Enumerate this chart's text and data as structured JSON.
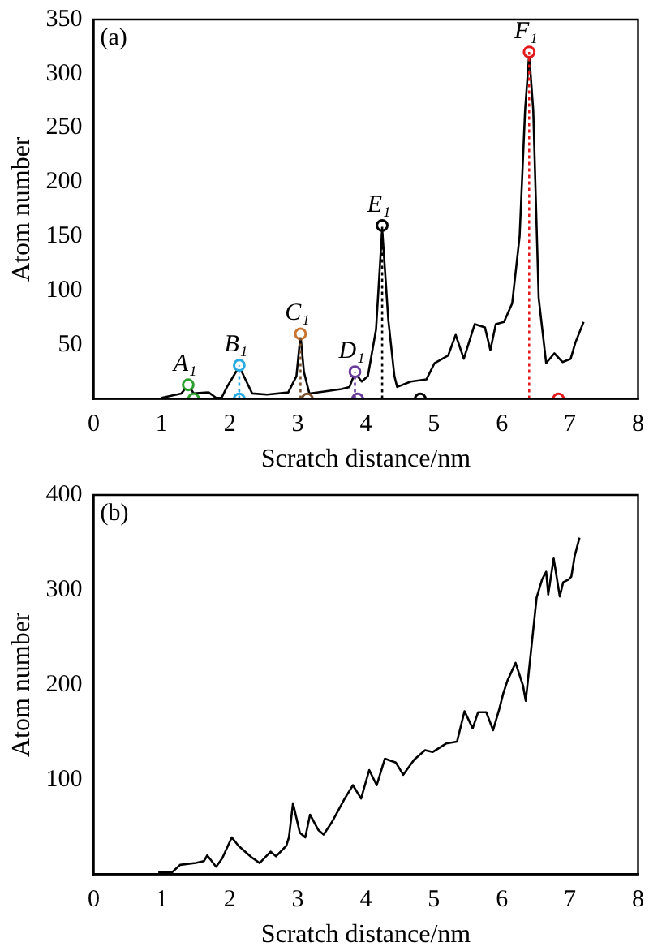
{
  "chart_data": [
    {
      "type": "line",
      "xlabel": "Scratch distance/nm",
      "ylabel": "Atom number",
      "xlim": [
        0,
        8
      ],
      "ylim": [
        0,
        350
      ],
      "xticks": [
        0,
        1,
        2,
        3,
        4,
        5,
        6,
        7,
        8
      ],
      "yticks": [
        50,
        100,
        150,
        200,
        250,
        300,
        350
      ],
      "grid": false,
      "legend": false,
      "annotations": [
        "(a)",
        {
          "text": "A₁",
          "x": 1.39,
          "y": 13
        },
        {
          "text": "B₁",
          "x": 2.14,
          "y": 31
        },
        {
          "text": "C₁",
          "x": 3.04,
          "y": 60
        },
        {
          "text": "D₁",
          "x": 3.84,
          "y": 25
        },
        {
          "text": "E₁",
          "x": 4.24,
          "y": 160
        },
        {
          "text": "F₁",
          "x": 6.4,
          "y": 320
        }
      ],
      "series": [
        {
          "type": "line",
          "color": "#000000",
          "marker": "none",
          "line_style": "solid",
          "x": [
            1.0,
            1.29,
            1.39,
            1.47,
            1.69,
            1.8,
            1.88,
            1.96,
            2.14,
            2.23,
            2.33,
            2.55,
            2.86,
            2.98,
            3.04,
            3.09,
            3.17,
            3.41,
            3.64,
            3.76,
            3.84,
            3.94,
            4.03,
            4.15,
            4.24,
            4.33,
            4.42,
            4.46,
            4.66,
            4.89,
            5.01,
            5.21,
            5.32,
            5.44,
            5.6,
            5.75,
            5.83,
            5.91,
            6.03,
            6.15,
            6.26,
            6.34,
            6.4,
            6.46,
            6.54,
            6.65,
            6.77,
            6.89,
            7.01,
            7.08,
            7.2
          ],
          "values": [
            1,
            5,
            13,
            5,
            6,
            1,
            1,
            11,
            30,
            18,
            5,
            4,
            6,
            21,
            59,
            25,
            5,
            7,
            9,
            11,
            24,
            16,
            21,
            64,
            157,
            73,
            21,
            11,
            16,
            18,
            33,
            40,
            59,
            37,
            69,
            66,
            45,
            69,
            71,
            88,
            150,
            266,
            318,
            266,
            93,
            33,
            42,
            34,
            37,
            52,
            71
          ]
        },
        {
          "type": "line",
          "color": "#29abe2",
          "marker": "none",
          "line_style": "dotted",
          "x": [
            2.14,
            2.14
          ],
          "values": [
            0,
            31
          ]
        },
        {
          "type": "line",
          "color": "#7a5230",
          "marker": "none",
          "line_style": "dotted",
          "x": [
            3.04,
            3.04
          ],
          "values": [
            0,
            60
          ]
        },
        {
          "type": "line",
          "color": "#6a3d9a",
          "marker": "none",
          "line_style": "dotted",
          "x": [
            3.84,
            3.84
          ],
          "values": [
            0,
            25
          ]
        },
        {
          "type": "line",
          "color": "#000000",
          "marker": "none",
          "line_style": "dotted",
          "x": [
            4.24,
            4.24
          ],
          "values": [
            0,
            160
          ]
        },
        {
          "type": "line",
          "color": "#e31a1c",
          "marker": "none",
          "line_style": "dotted",
          "x": [
            6.4,
            6.4
          ],
          "values": [
            0,
            320
          ]
        },
        {
          "type": "scatter",
          "marker": "circle",
          "x": [
            1.39,
            2.14,
            3.04,
            3.84,
            4.24,
            6.4
          ],
          "values": [
            13,
            31,
            60,
            25,
            160,
            320
          ],
          "colors": [
            "#2ca02c",
            "#29abe2",
            "#c87533",
            "#6a3d9a",
            "#000000",
            "#e31a1c"
          ]
        },
        {
          "type": "scatter",
          "marker": "circle",
          "x": [
            1.47,
            2.14,
            3.14,
            3.88,
            4.8,
            6.83
          ],
          "values": [
            0,
            0,
            0,
            0,
            0,
            0
          ],
          "colors": [
            "#2ca02c",
            "#29abe2",
            "#7a5230",
            "#6a3d9a",
            "#000000",
            "#e31a1c"
          ]
        }
      ]
    },
    {
      "type": "line",
      "xlabel": "Scratch distance/nm",
      "ylabel": "Atom number",
      "xlim": [
        0,
        8
      ],
      "ylim": [
        0,
        400
      ],
      "xticks": [
        0,
        1,
        2,
        3,
        4,
        5,
        6,
        7,
        8
      ],
      "yticks": [
        100,
        200,
        300,
        400
      ],
      "grid": false,
      "legend": false,
      "annotations": [
        "(b)"
      ],
      "series": [
        {
          "type": "line",
          "color": "#000000",
          "marker": "none",
          "line_style": "solid",
          "x": [
            0.95,
            1.15,
            1.27,
            1.5,
            1.62,
            1.67,
            1.8,
            1.89,
            2.03,
            2.13,
            2.32,
            2.44,
            2.6,
            2.68,
            2.83,
            2.87,
            2.93,
            3.03,
            3.11,
            3.18,
            3.3,
            3.38,
            3.5,
            3.69,
            3.81,
            3.93,
            4.05,
            4.16,
            4.28,
            4.44,
            4.55,
            4.71,
            4.87,
            4.98,
            5.18,
            5.34,
            5.45,
            5.57,
            5.65,
            5.77,
            5.87,
            5.96,
            6.02,
            6.08,
            6.2,
            6.31,
            6.35,
            6.51,
            6.59,
            6.65,
            6.68,
            6.76,
            6.85,
            6.9,
            6.98,
            7.02,
            7.07,
            7.14
          ],
          "values": [
            2,
            2,
            10,
            12,
            14,
            20,
            8,
            17,
            39,
            30,
            18,
            12,
            24,
            19,
            30,
            39,
            75,
            44,
            39,
            63,
            47,
            42,
            55,
            80,
            94,
            80,
            110,
            94,
            122,
            118,
            105,
            121,
            131,
            129,
            138,
            140,
            172,
            154,
            171,
            171,
            152,
            174,
            191,
            204,
            223,
            199,
            183,
            292,
            311,
            319,
            295,
            333,
            293,
            308,
            311,
            314,
            336,
            355
          ]
        }
      ]
    }
  ]
}
